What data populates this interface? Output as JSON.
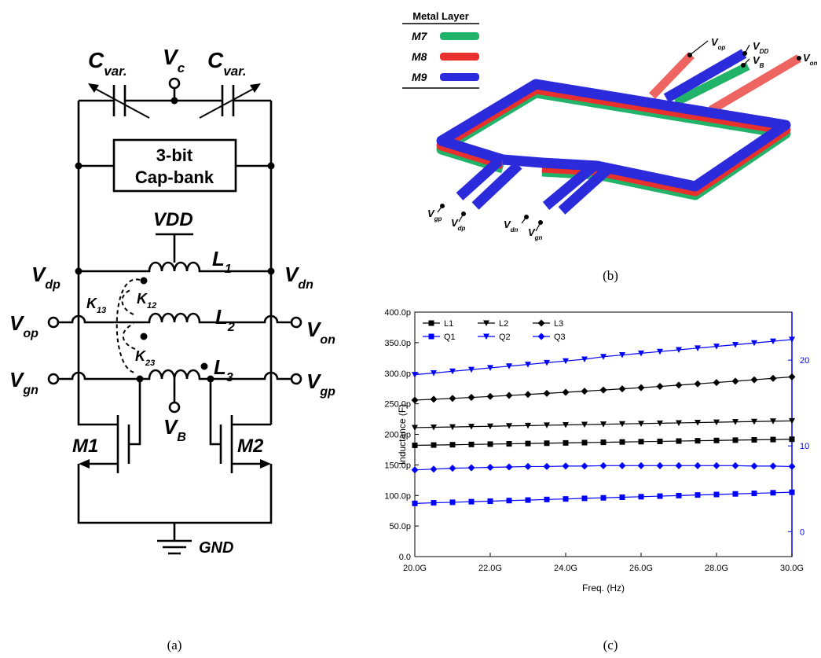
{
  "panel_a": {
    "labels": [
      {
        "main": "C",
        "sub": "var."
      },
      {
        "main": "V",
        "sub": "c"
      },
      {
        "main": "C",
        "sub": "var."
      },
      {
        "main": "VDD"
      },
      {
        "main": "L",
        "sub": "1"
      },
      {
        "main": "V",
        "sub": "dp"
      },
      {
        "main": "V",
        "sub": "dn"
      },
      {
        "main": "K",
        "sub": "13"
      },
      {
        "main": "K",
        "sub": "12"
      },
      {
        "main": "L",
        "sub": "2"
      },
      {
        "main": "V",
        "sub": "op"
      },
      {
        "main": "V",
        "sub": "on"
      },
      {
        "main": "K",
        "sub": "23"
      },
      {
        "main": "V",
        "sub": "gn"
      },
      {
        "main": "L",
        "sub": "3"
      },
      {
        "main": "V",
        "sub": "gp"
      },
      {
        "main": "V",
        "sub": "B"
      },
      {
        "main": "M1"
      },
      {
        "main": "M2"
      },
      {
        "main": "GND"
      }
    ],
    "cap_bank": [
      "3-bit",
      "Cap-bank"
    ],
    "caption": "(a)"
  },
  "panel_b": {
    "legend_title": "Metal Layer",
    "layers": [
      {
        "name": "M7",
        "color": "#22b36a"
      },
      {
        "name": "M8",
        "color": "#e8302c"
      },
      {
        "name": "M9",
        "color": "#2b2bdc"
      }
    ],
    "pins": [
      {
        "main": "V",
        "sub": "op"
      },
      {
        "main": "V",
        "sub": "DD"
      },
      {
        "main": "V",
        "sub": "B"
      },
      {
        "main": "V",
        "sub": "on"
      },
      {
        "main": "V",
        "sub": "gp"
      },
      {
        "main": "V",
        "sub": "dp"
      },
      {
        "main": "V",
        "sub": "dn"
      },
      {
        "main": "V",
        "sub": "gn"
      }
    ],
    "caption": "(b)"
  },
  "chart_data": {
    "type": "line",
    "xlabel": "Freq. (Hz)",
    "ylabel": "Inductance (F)",
    "x": [
      20000000000.0,
      20500000000.0,
      21000000000.0,
      21500000000.0,
      22000000000.0,
      22500000000.0,
      23000000000.0,
      23500000000.0,
      24000000000.0,
      24500000000.0,
      25000000000.0,
      25500000000.0,
      26000000000.0,
      26500000000.0,
      27000000000.0,
      27500000000.0,
      28000000000.0,
      28500000000.0,
      29000000000.0,
      29500000000.0,
      30000000000.0
    ],
    "xlim": [
      20000000000.0,
      30000000000.0
    ],
    "xticks": [
      {
        "value": 20000000000.0,
        "label": "20.0G"
      },
      {
        "value": 22000000000.0,
        "label": "22.0G"
      },
      {
        "value": 24000000000.0,
        "label": "24.0G"
      },
      {
        "value": 26000000000.0,
        "label": "26.0G"
      },
      {
        "value": 28000000000.0,
        "label": "28.0G"
      },
      {
        "value": 30000000000.0,
        "label": "30.0G"
      }
    ],
    "ylim": [
      0,
      4e-10
    ],
    "yticks": [
      {
        "value": 0,
        "label": "0.0"
      },
      {
        "value": 5e-11,
        "label": "50.0p"
      },
      {
        "value": 1e-10,
        "label": "100.0p"
      },
      {
        "value": 1.5e-10,
        "label": "150.0p"
      },
      {
        "value": 2e-10,
        "label": "200.0p"
      },
      {
        "value": 2.5e-10,
        "label": "250.0p"
      },
      {
        "value": 3e-10,
        "label": "300.0p"
      },
      {
        "value": 3.5e-10,
        "label": "350.0p"
      },
      {
        "value": 4e-10,
        "label": "400.0p"
      }
    ],
    "y2lim": [
      -2.9,
      25.6
    ],
    "y2ticks": [
      0,
      10,
      20
    ],
    "y2color": "#0000ff",
    "legend": "top-left",
    "series": [
      {
        "name": "L1",
        "color": "#000000",
        "marker": "square",
        "values": [
          1.82e-10,
          1.825e-10,
          1.83e-10,
          1.835e-10,
          1.84e-10,
          1.845e-10,
          1.85e-10,
          1.855e-10,
          1.86e-10,
          1.865e-10,
          1.87e-10,
          1.875e-10,
          1.88e-10,
          1.885e-10,
          1.89e-10,
          1.895e-10,
          1.9e-10,
          1.905e-10,
          1.91e-10,
          1.915e-10,
          1.92e-10
        ]
      },
      {
        "name": "L2",
        "color": "#000000",
        "marker": "triangle-down",
        "values": [
          2.11e-10,
          2.116e-10,
          2.121e-10,
          2.127e-10,
          2.132e-10,
          2.138e-10,
          2.143e-10,
          2.149e-10,
          2.154e-10,
          2.16e-10,
          2.165e-10,
          2.171e-10,
          2.176e-10,
          2.182e-10,
          2.187e-10,
          2.193e-10,
          2.198e-10,
          2.204e-10,
          2.209e-10,
          2.215e-10,
          2.22e-10
        ]
      },
      {
        "name": "L3",
        "color": "#000000",
        "marker": "diamond",
        "values": [
          2.56e-10,
          2.574e-10,
          2.589e-10,
          2.604e-10,
          2.62e-10,
          2.636e-10,
          2.653e-10,
          2.67e-10,
          2.688e-10,
          2.706e-10,
          2.725e-10,
          2.744e-10,
          2.764e-10,
          2.784e-10,
          2.805e-10,
          2.826e-10,
          2.848e-10,
          2.87e-10,
          2.893e-10,
          2.916e-10,
          2.94e-10
        ]
      },
      {
        "name": "Q1",
        "color": "#0000ff",
        "marker": "square",
        "axis": "y2",
        "values": [
          3.3,
          3.37,
          3.43,
          3.5,
          3.56,
          3.63,
          3.69,
          3.76,
          3.82,
          3.89,
          3.95,
          4.02,
          4.08,
          4.15,
          4.21,
          4.28,
          4.34,
          4.41,
          4.47,
          4.54,
          4.6
        ]
      },
      {
        "name": "Q2",
        "color": "#0000ff",
        "marker": "triangle-down",
        "axis": "y2",
        "values": [
          18.3,
          18.5,
          18.7,
          18.9,
          19.1,
          19.3,
          19.5,
          19.7,
          19.9,
          20.1,
          20.4,
          20.6,
          20.8,
          21.0,
          21.2,
          21.4,
          21.6,
          21.8,
          22.0,
          22.2,
          22.4
        ]
      },
      {
        "name": "Q3",
        "color": "#0000ff",
        "marker": "diamond",
        "axis": "y2",
        "values": [
          7.2,
          7.3,
          7.4,
          7.45,
          7.5,
          7.55,
          7.6,
          7.6,
          7.65,
          7.65,
          7.7,
          7.7,
          7.7,
          7.7,
          7.7,
          7.7,
          7.7,
          7.7,
          7.65,
          7.65,
          7.6
        ]
      }
    ],
    "caption": "(c)"
  }
}
